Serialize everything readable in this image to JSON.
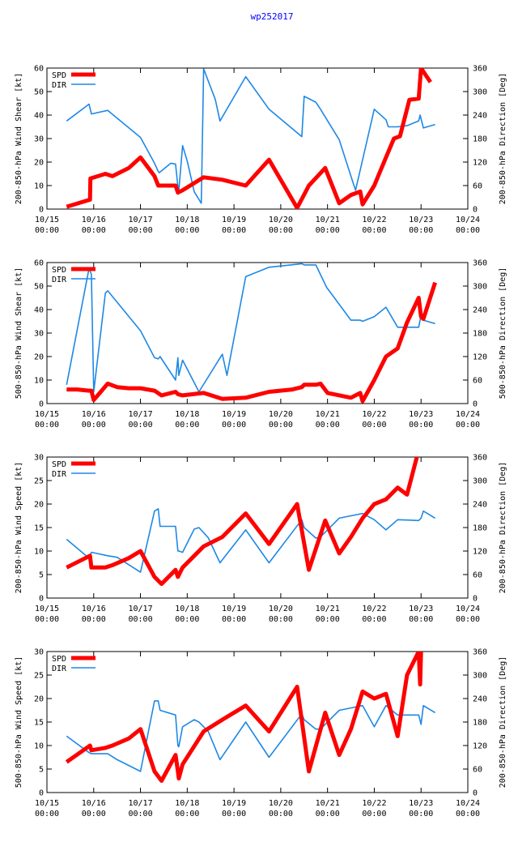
{
  "page_title": "wp252017",
  "x_tick_labels": [
    [
      "10/15",
      "00:00"
    ],
    [
      "10/16",
      "00:00"
    ],
    [
      "10/17",
      "00:00"
    ],
    [
      "10/18",
      "00:00"
    ],
    [
      "10/19",
      "00:00"
    ],
    [
      "10/20",
      "00:00"
    ],
    [
      "10/21",
      "00:00"
    ],
    [
      "10/22",
      "00:00"
    ],
    [
      "10/23",
      "00:00"
    ],
    [
      "10/24",
      "00:00"
    ]
  ],
  "legend": {
    "spd": "SPD",
    "dir": "DIR"
  },
  "colors": {
    "spd": "#ff0000",
    "dir": "#1e88e5",
    "title": "#0000ff"
  },
  "chart_data": [
    {
      "type": "line",
      "title": "wp252017",
      "xlabel": "",
      "ylabel": "200-850-hPa Wind Shear [kt]",
      "y2label": "200-850-hPa Direction [Deg]",
      "xlim": [
        0,
        9
      ],
      "ylim": [
        0,
        60
      ],
      "y2lim": [
        0,
        360
      ],
      "yticks": [
        0,
        10,
        20,
        30,
        40,
        50,
        60
      ],
      "y2ticks": [
        0,
        60,
        120,
        180,
        240,
        300,
        360
      ],
      "series": [
        {
          "name": "SPD",
          "axis": "left",
          "x": [
            0.42,
            0.92,
            0.93,
            1.25,
            1.4,
            1.75,
            2.0,
            2.3,
            2.38,
            2.4,
            2.75,
            2.8,
            2.9,
            3.35,
            3.75,
            4.25,
            4.75,
            5.35,
            5.6,
            5.95,
            6.25,
            6.5,
            6.7,
            6.75,
            7.0,
            7.25,
            7.42,
            7.55,
            7.75,
            7.95,
            8.0,
            8.2
          ],
          "values": [
            1,
            4,
            13,
            15,
            14,
            17.5,
            22,
            14,
            10,
            10,
            10,
            7,
            8,
            13.5,
            12.5,
            10,
            21,
            0.5,
            10,
            17.5,
            2.5,
            6,
            7.5,
            2,
            10,
            22,
            30,
            31,
            46.5,
            47,
            60,
            54
          ]
        },
        {
          "name": "DIR",
          "axis": "right",
          "x": [
            0.42,
            0.9,
            0.95,
            1.3,
            2.0,
            2.3,
            2.38,
            2.4,
            2.65,
            2.75,
            2.8,
            2.82,
            2.9,
            3.0,
            3.15,
            3.3,
            3.35,
            3.6,
            3.7,
            4.25,
            4.75,
            5.45,
            5.5,
            5.75,
            5.85,
            6.25,
            6.55,
            6.6,
            7.0,
            7.25,
            7.3,
            7.5,
            7.7,
            7.95,
            7.98,
            8.05,
            8.3
          ],
          "values": [
            225,
            268,
            243,
            252,
            183,
            117,
            96,
            93,
            117,
            115,
            57,
            46,
            162,
            123,
            44,
            15,
            358,
            280,
            225,
            338,
            255,
            185,
            288,
            273,
            255,
            177,
            66,
            48,
            255,
            228,
            210,
            210,
            213,
            225,
            240,
            207,
            216
          ]
        }
      ]
    },
    {
      "type": "line",
      "xlabel": "",
      "ylabel": "500-850-hPa Wind Shear [kt]",
      "y2label": "500-850-hPa Direction [Deg]",
      "xlim": [
        0,
        9
      ],
      "ylim": [
        0,
        60
      ],
      "y2lim": [
        0,
        360
      ],
      "yticks": [
        0,
        10,
        20,
        30,
        40,
        50,
        60
      ],
      "y2ticks": [
        0,
        60,
        120,
        180,
        240,
        300,
        360
      ],
      "series": [
        {
          "name": "SPD",
          "axis": "left",
          "x": [
            0.42,
            0.65,
            0.9,
            0.95,
            1.0,
            1.3,
            1.5,
            1.75,
            2.0,
            2.3,
            2.45,
            2.75,
            2.8,
            2.9,
            3.35,
            3.75,
            4.25,
            4.75,
            5.25,
            5.45,
            5.5,
            5.75,
            5.85,
            6.0,
            6.5,
            6.7,
            6.75,
            7.0,
            7.25,
            7.5,
            7.7,
            7.95,
            8.0,
            8.05,
            8.3
          ],
          "values": [
            6,
            6,
            5.5,
            5.5,
            1.5,
            8.5,
            7,
            6.5,
            6.5,
            5.5,
            3.5,
            5,
            4,
            3.5,
            4.5,
            2,
            2.5,
            5,
            6,
            7,
            8,
            8,
            8.5,
            4.5,
            2.5,
            4.5,
            1,
            10,
            20,
            23.5,
            34.5,
            45,
            37,
            36,
            51.5
          ]
        },
        {
          "name": "DIR",
          "axis": "right",
          "x": [
            0.42,
            0.9,
            0.95,
            1.0,
            1.25,
            1.3,
            2.0,
            2.3,
            2.38,
            2.42,
            2.75,
            2.8,
            2.82,
            2.9,
            3.25,
            3.75,
            3.85,
            4.25,
            4.75,
            5.45,
            5.5,
            5.75,
            5.98,
            6.5,
            6.7,
            6.75,
            7.0,
            7.25,
            7.5,
            7.95,
            8.0,
            8.05,
            8.3
          ],
          "values": [
            48,
            345,
            330,
            30,
            282,
            288,
            186,
            117,
            114,
            120,
            60,
            117,
            72,
            111,
            30,
            126,
            72,
            324,
            348,
            357,
            354,
            354,
            297,
            213,
            213,
            210,
            222,
            246,
            195,
            195,
            225,
            213,
            204
          ]
        }
      ]
    },
    {
      "type": "line",
      "xlabel": "",
      "ylabel": "200-850-hPa Wind Speed [kt]",
      "y2label": "200-850-hPa Direction [Deg]",
      "xlim": [
        0,
        9
      ],
      "ylim": [
        0,
        30
      ],
      "y2lim": [
        0,
        360
      ],
      "yticks": [
        0,
        5,
        10,
        15,
        20,
        25,
        30
      ],
      "y2ticks": [
        0,
        60,
        120,
        180,
        240,
        300,
        360
      ],
      "series": [
        {
          "name": "SPD",
          "axis": "left",
          "x": [
            0.42,
            0.92,
            0.95,
            1.25,
            1.4,
            1.75,
            2.0,
            2.3,
            2.45,
            2.75,
            2.8,
            2.9,
            3.35,
            3.75,
            4.25,
            4.75,
            5.35,
            5.6,
            5.95,
            6.25,
            6.5,
            6.75,
            7.0,
            7.25,
            7.5,
            7.7,
            7.95
          ],
          "values": [
            6.5,
            9,
            6.5,
            6.5,
            7,
            8.5,
            10,
            4.5,
            3,
            6,
            4.5,
            6.5,
            11,
            13,
            18,
            11.5,
            20,
            6,
            16.5,
            9.5,
            13,
            17,
            20,
            21,
            23.5,
            22,
            31.5
          ]
        },
        {
          "name": "DIR",
          "axis": "right",
          "x": [
            0.42,
            0.9,
            0.95,
            1.3,
            1.5,
            2.0,
            2.3,
            2.38,
            2.42,
            2.75,
            2.8,
            2.82,
            2.9,
            3.15,
            3.25,
            3.45,
            3.7,
            4.25,
            4.75,
            5.45,
            5.5,
            5.75,
            5.85,
            6.25,
            6.5,
            6.75,
            7.0,
            7.25,
            7.5,
            7.95,
            8.0,
            8.05,
            8.3
          ],
          "values": [
            150,
            102,
            117,
            108,
            104,
            66,
            222,
            228,
            183,
            183,
            120,
            120,
            117,
            176,
            180,
            154,
            90,
            174,
            90,
            200,
            180,
            153,
            156,
            204,
            210,
            216,
            200,
            174,
            200,
            198,
            204,
            222,
            204
          ]
        }
      ]
    },
    {
      "type": "line",
      "xlabel": "",
      "ylabel": "500-850-hPa Wind Speed [kt]",
      "y2label": "200-850-hPa Direction [Deg]",
      "xlim": [
        0,
        9
      ],
      "ylim": [
        0,
        30
      ],
      "y2lim": [
        0,
        360
      ],
      "yticks": [
        0,
        5,
        10,
        15,
        20,
        25,
        30
      ],
      "y2ticks": [
        0,
        60,
        120,
        180,
        240,
        300,
        360
      ],
      "series": [
        {
          "name": "SPD",
          "axis": "left",
          "x": [
            0.42,
            0.92,
            0.95,
            1.25,
            1.4,
            1.75,
            2.0,
            2.3,
            2.45,
            2.75,
            2.8,
            2.82,
            2.9,
            3.35,
            3.75,
            4.25,
            4.75,
            5.35,
            5.6,
            5.95,
            6.25,
            6.5,
            6.75,
            7.0,
            7.25,
            7.5,
            7.7,
            7.95,
            7.98,
            8.0
          ],
          "values": [
            6.5,
            10,
            9,
            9.5,
            10,
            11.5,
            13.5,
            4.5,
            2.5,
            8,
            4.5,
            3,
            6,
            13,
            15.5,
            18.5,
            13,
            22.5,
            4.5,
            17,
            8,
            13.5,
            21.5,
            20,
            21,
            12,
            25,
            30,
            23,
            30
          ]
        },
        {
          "name": "DIR",
          "axis": "right",
          "x": [
            0.42,
            0.9,
            0.95,
            1.3,
            1.5,
            2.0,
            2.3,
            2.38,
            2.42,
            2.75,
            2.8,
            2.82,
            2.9,
            3.15,
            3.25,
            3.45,
            3.7,
            4.25,
            4.75,
            5.45,
            5.5,
            5.75,
            5.85,
            6.25,
            6.5,
            6.75,
            7.0,
            7.25,
            7.5,
            7.95,
            8.0,
            8.05,
            8.3
          ],
          "values": [
            144,
            102,
            99,
            99,
            84,
            54,
            234,
            234,
            210,
            198,
            120,
            117,
            168,
            186,
            180,
            156,
            84,
            180,
            90,
            201,
            186,
            162,
            162,
            210,
            216,
            222,
            168,
            222,
            198,
            198,
            174,
            222,
            204
          ]
        }
      ]
    }
  ]
}
